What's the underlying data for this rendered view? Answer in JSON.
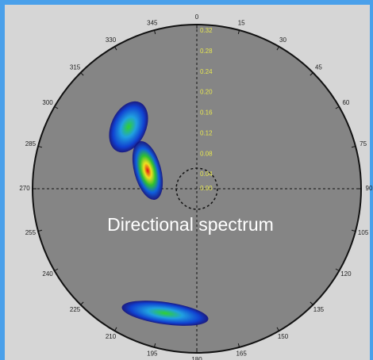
{
  "chart_data": {
    "type": "polar",
    "title": "Directional spectrum",
    "thetaticks": [
      0,
      15,
      30,
      45,
      60,
      75,
      90,
      105,
      120,
      135,
      150,
      165,
      180,
      195,
      210,
      225,
      240,
      255,
      270,
      285,
      300,
      315,
      330,
      345
    ],
    "rlim": [
      0,
      0.32
    ],
    "rticks": [
      {
        "value": 0,
        "label": "0.00"
      },
      0.04,
      0.08,
      0.12,
      0.16,
      {
        "value": 0.2,
        "label": "0.20"
      },
      0.24,
      0.28,
      0.32
    ]
  }
}
